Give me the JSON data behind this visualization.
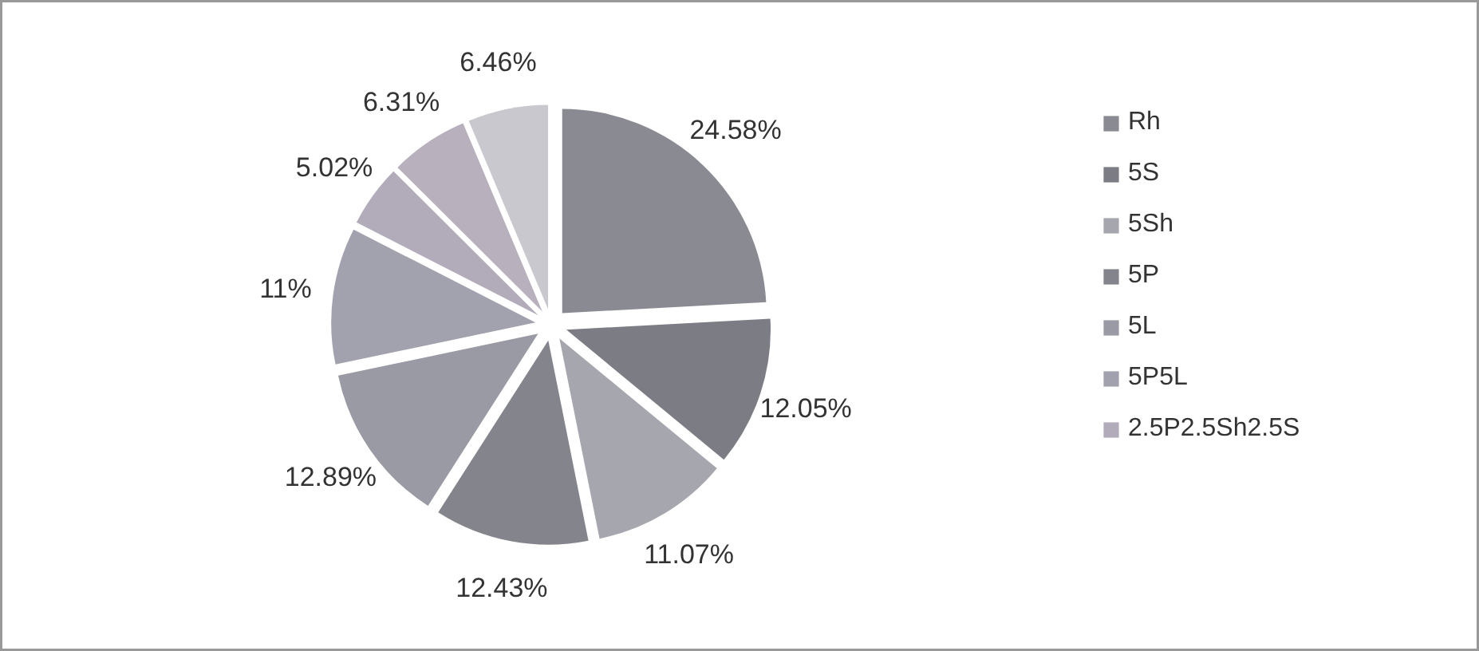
{
  "chart_data": {
    "type": "pie",
    "categories": [
      "Rh",
      "5S",
      "5Sh",
      "5P",
      "5L",
      "5P5L",
      "2.5P2.5Sh2.5S",
      null,
      null
    ],
    "values": [
      24.58,
      12.05,
      11.07,
      12.43,
      12.89,
      11,
      5.02,
      6.31,
      6.46
    ],
    "colors": [
      "#8a8a92",
      "#7c7c84",
      "#a6a6ae",
      "#84848c",
      "#9a9aa4",
      "#a2a2ae",
      "#b2acba",
      "#b8b0bc",
      "#c8c8ce"
    ],
    "value_labels": [
      "24.58%",
      "12.05%",
      "11.07%",
      "12.43%",
      "12.89%",
      "11%",
      "5.02%",
      "6.31%",
      "6.46%"
    ],
    "legend": "right"
  }
}
